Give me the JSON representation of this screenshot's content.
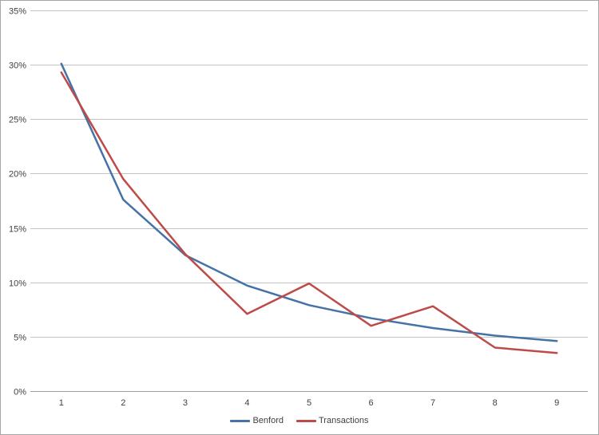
{
  "window": {
    "background_color": "#ffffff",
    "border_color": "#a6a6a6"
  },
  "chart_data": {
    "type": "line",
    "title": "",
    "xlabel": "",
    "ylabel": "",
    "categories": [
      "1",
      "2",
      "3",
      "4",
      "5",
      "6",
      "7",
      "8",
      "9"
    ],
    "series": [
      {
        "name": "Benford",
        "color": "#4572A7",
        "values": [
          30.1,
          17.6,
          12.5,
          9.7,
          7.9,
          6.7,
          5.8,
          5.1,
          4.6
        ]
      },
      {
        "name": "Transactions",
        "color": "#BE4B48",
        "values": [
          29.3,
          19.5,
          12.6,
          7.1,
          9.9,
          6.0,
          7.8,
          4.0,
          3.5
        ]
      }
    ],
    "ylim": [
      0,
      35
    ],
    "y_tick_step": 5,
    "y_tick_labels": [
      "0%",
      "5%",
      "10%",
      "15%",
      "20%",
      "25%",
      "30%",
      "35%"
    ],
    "grid": true,
    "gridline_color": "#c3c3c3",
    "axis_line_color": "#9e9e9e",
    "tick_label_color": "#404040",
    "legend_position": "bottom"
  },
  "legend": {
    "items": [
      {
        "label": "Benford",
        "color": "#4572A7"
      },
      {
        "label": "Transactions",
        "color": "#BE4B48"
      }
    ]
  }
}
